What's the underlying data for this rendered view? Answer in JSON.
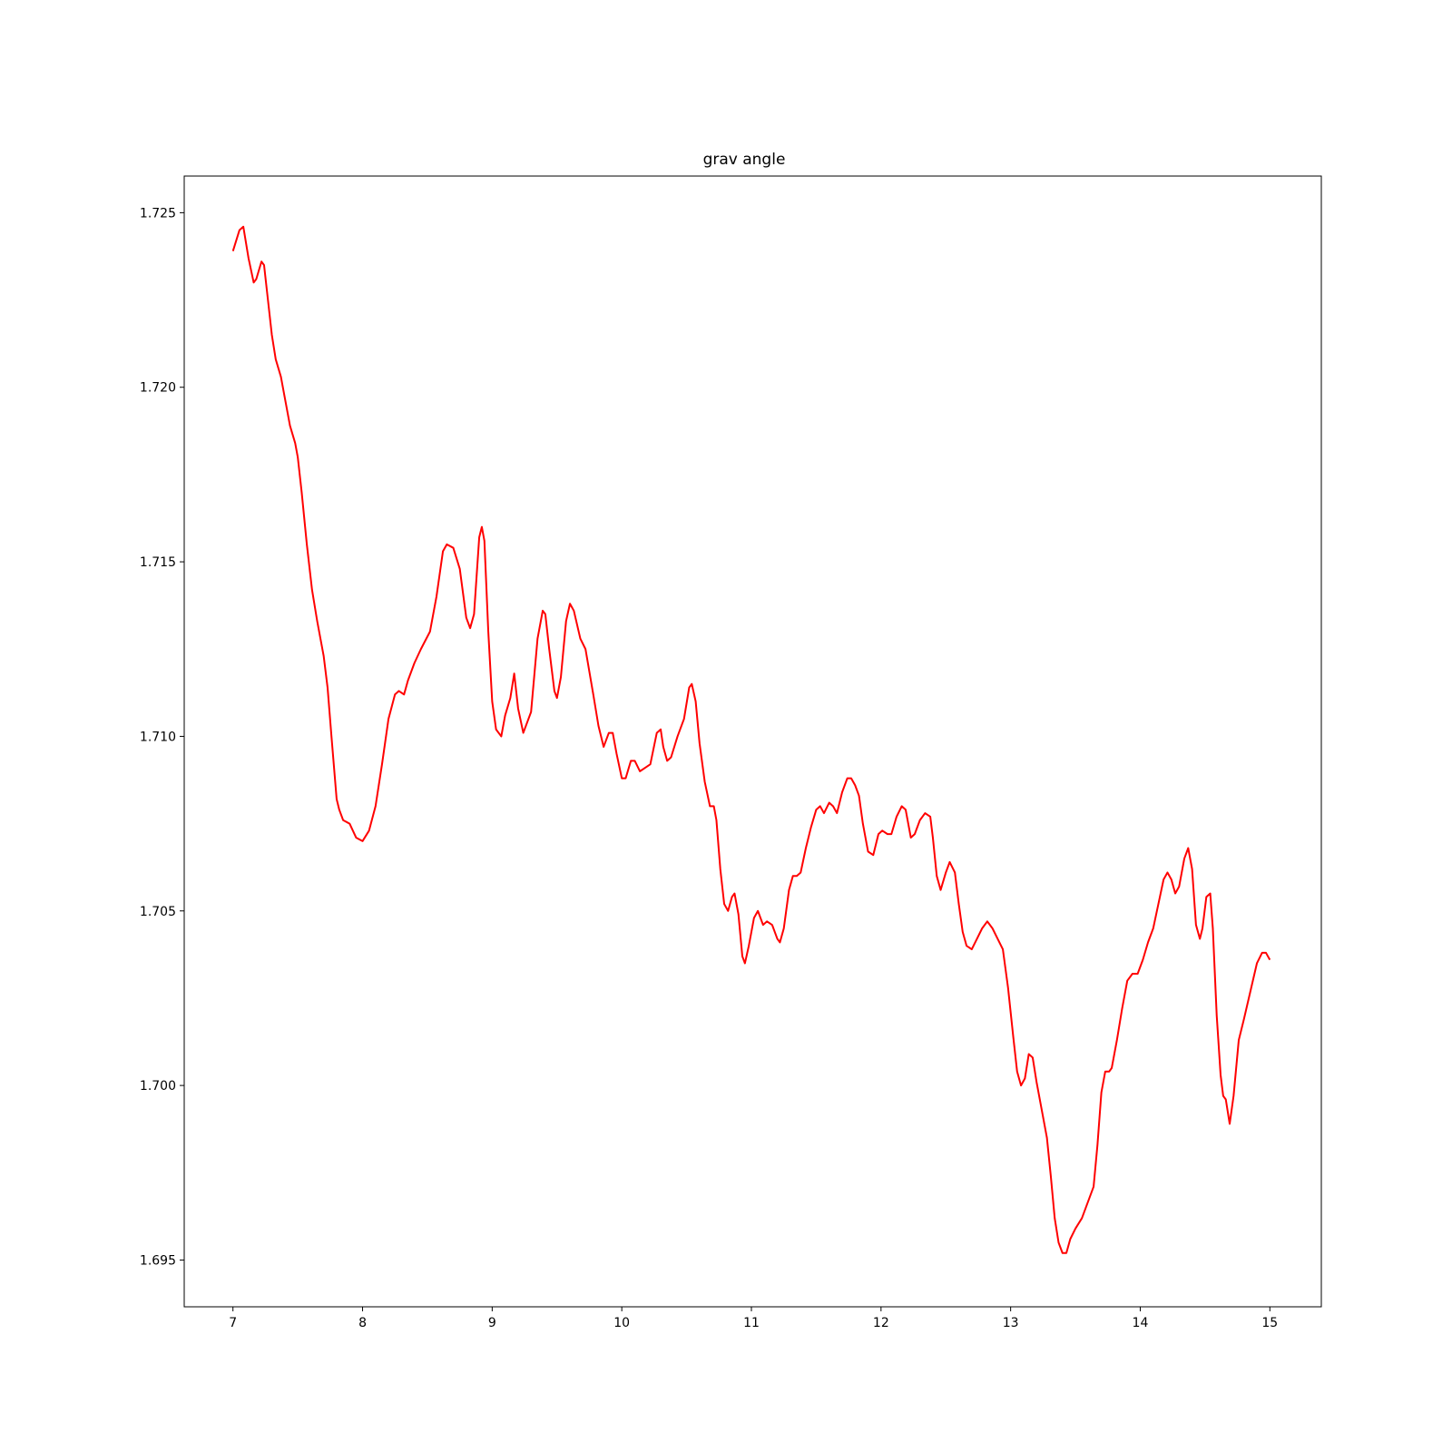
{
  "chart_data": {
    "type": "line",
    "title": "grav angle",
    "x": [
      7.0,
      7.05,
      7.08,
      7.12,
      7.16,
      7.18,
      7.22,
      7.24,
      7.27,
      7.3,
      7.33,
      7.37,
      7.4,
      7.44,
      7.48,
      7.5,
      7.53,
      7.57,
      7.61,
      7.65,
      7.7,
      7.73,
      7.76,
      7.8,
      7.82,
      7.85,
      7.9,
      7.95,
      8.0,
      8.05,
      8.1,
      8.15,
      8.2,
      8.25,
      8.28,
      8.32,
      8.35,
      8.4,
      8.45,
      8.52,
      8.57,
      8.62,
      8.65,
      8.7,
      8.75,
      8.8,
      8.83,
      8.86,
      8.9,
      8.92,
      8.94,
      8.97,
      9.0,
      9.03,
      9.07,
      9.1,
      9.14,
      9.17,
      9.2,
      9.24,
      9.3,
      9.35,
      9.39,
      9.41,
      9.44,
      9.48,
      9.5,
      9.53,
      9.57,
      9.6,
      9.63,
      9.68,
      9.72,
      9.78,
      9.82,
      9.86,
      9.9,
      9.93,
      9.96,
      10.0,
      10.03,
      10.07,
      10.1,
      10.14,
      10.18,
      10.22,
      10.27,
      10.3,
      10.32,
      10.35,
      10.38,
      10.43,
      10.48,
      10.52,
      10.54,
      10.57,
      10.6,
      10.64,
      10.68,
      10.71,
      10.73,
      10.76,
      10.79,
      10.82,
      10.85,
      10.87,
      10.9,
      10.93,
      10.95,
      10.98,
      11.02,
      11.05,
      11.09,
      11.12,
      11.16,
      11.2,
      11.22,
      11.25,
      11.29,
      11.32,
      11.35,
      11.38,
      11.42,
      11.46,
      11.5,
      11.53,
      11.56,
      11.6,
      11.63,
      11.66,
      11.7,
      11.74,
      11.77,
      11.8,
      11.83,
      11.86,
      11.9,
      11.94,
      11.98,
      12.01,
      12.05,
      12.08,
      12.12,
      12.16,
      12.19,
      12.23,
      12.26,
      12.3,
      12.34,
      12.38,
      12.4,
      12.43,
      12.46,
      12.5,
      12.53,
      12.57,
      12.6,
      12.63,
      12.66,
      12.7,
      12.74,
      12.78,
      12.82,
      12.86,
      12.9,
      12.94,
      12.98,
      13.02,
      13.05,
      13.08,
      13.11,
      13.14,
      13.17,
      13.2,
      13.24,
      13.28,
      13.31,
      13.34,
      13.37,
      13.4,
      13.43,
      13.46,
      13.5,
      13.55,
      13.6,
      13.64,
      13.67,
      13.7,
      13.73,
      13.76,
      13.78,
      13.82,
      13.86,
      13.9,
      13.94,
      13.98,
      14.02,
      14.06,
      14.1,
      14.14,
      14.18,
      14.21,
      14.24,
      14.27,
      14.3,
      14.34,
      14.37,
      14.4,
      14.43,
      14.46,
      14.48,
      14.51,
      14.54,
      14.56,
      14.59,
      14.62,
      14.64,
      14.66,
      14.69,
      14.72,
      14.76,
      14.8,
      14.85,
      14.9,
      14.94,
      14.97,
      15.0
    ],
    "values": [
      1.7239,
      1.7245,
      1.7246,
      1.7237,
      1.723,
      1.7231,
      1.7236,
      1.7235,
      1.7225,
      1.7215,
      1.7208,
      1.7203,
      1.7197,
      1.7189,
      1.7184,
      1.718,
      1.717,
      1.7155,
      1.7142,
      1.7133,
      1.7123,
      1.7114,
      1.71,
      1.7082,
      1.7079,
      1.7076,
      1.7075,
      1.7071,
      1.707,
      1.7073,
      1.708,
      1.7092,
      1.7105,
      1.7112,
      1.7113,
      1.7112,
      1.7116,
      1.7121,
      1.7125,
      1.713,
      1.714,
      1.7153,
      1.7155,
      1.7154,
      1.7148,
      1.7134,
      1.7131,
      1.7135,
      1.7157,
      1.716,
      1.7156,
      1.713,
      1.711,
      1.7102,
      1.71,
      1.7106,
      1.7111,
      1.7118,
      1.7108,
      1.7101,
      1.7107,
      1.7128,
      1.7136,
      1.7135,
      1.7125,
      1.7113,
      1.7111,
      1.7117,
      1.7133,
      1.7138,
      1.7136,
      1.7128,
      1.7125,
      1.7112,
      1.7103,
      1.7097,
      1.7101,
      1.7101,
      1.7095,
      1.7088,
      1.7088,
      1.7093,
      1.7093,
      1.709,
      1.7091,
      1.7092,
      1.7101,
      1.7102,
      1.7097,
      1.7093,
      1.7094,
      1.71,
      1.7105,
      1.7114,
      1.7115,
      1.711,
      1.7098,
      1.7087,
      1.708,
      1.708,
      1.7076,
      1.7062,
      1.7052,
      1.705,
      1.7054,
      1.7055,
      1.7049,
      1.7037,
      1.7035,
      1.704,
      1.7048,
      1.705,
      1.7046,
      1.7047,
      1.7046,
      1.7042,
      1.7041,
      1.7045,
      1.7056,
      1.706,
      1.706,
      1.7061,
      1.7068,
      1.7074,
      1.7079,
      1.708,
      1.7078,
      1.7081,
      1.708,
      1.7078,
      1.7084,
      1.7088,
      1.7088,
      1.7086,
      1.7083,
      1.7075,
      1.7067,
      1.7066,
      1.7072,
      1.7073,
      1.7072,
      1.7072,
      1.7077,
      1.708,
      1.7079,
      1.7071,
      1.7072,
      1.7076,
      1.7078,
      1.7077,
      1.7071,
      1.706,
      1.7056,
      1.7061,
      1.7064,
      1.7061,
      1.7052,
      1.7044,
      1.704,
      1.7039,
      1.7042,
      1.7045,
      1.7047,
      1.7045,
      1.7042,
      1.7039,
      1.7028,
      1.7014,
      1.7004,
      1.7,
      1.7002,
      1.7009,
      1.7008,
      1.7001,
      1.6993,
      1.6985,
      1.6974,
      1.6962,
      1.6955,
      1.6952,
      1.6952,
      1.6956,
      1.6959,
      1.6962,
      1.6967,
      1.6971,
      1.6983,
      1.6998,
      1.7004,
      1.7004,
      1.7005,
      1.7013,
      1.7022,
      1.703,
      1.7032,
      1.7032,
      1.7036,
      1.7041,
      1.7045,
      1.7052,
      1.7059,
      1.7061,
      1.7059,
      1.7055,
      1.7057,
      1.7065,
      1.7068,
      1.7062,
      1.7046,
      1.7042,
      1.7045,
      1.7054,
      1.7055,
      1.7045,
      1.702,
      1.7003,
      1.6997,
      1.6996,
      1.6989,
      1.6997,
      1.7013,
      1.7019,
      1.7027,
      1.7035,
      1.7038,
      1.7038,
      1.7036
    ],
    "color": "#ff0000",
    "xlim": [
      6.624,
      15.397
    ],
    "xticks": [
      7,
      8,
      9,
      10,
      11,
      12,
      13,
      14,
      15
    ],
    "ylim": [
      1.69366,
      1.72605
    ],
    "yticks": [
      1.695,
      {
        "value": 1.7,
        "label": "1.700"
      },
      1.705,
      {
        "value": 1.71,
        "label": "1.710"
      },
      1.715,
      {
        "value": 1.72,
        "label": "1.720"
      },
      1.725
    ],
    "grid": false
  }
}
